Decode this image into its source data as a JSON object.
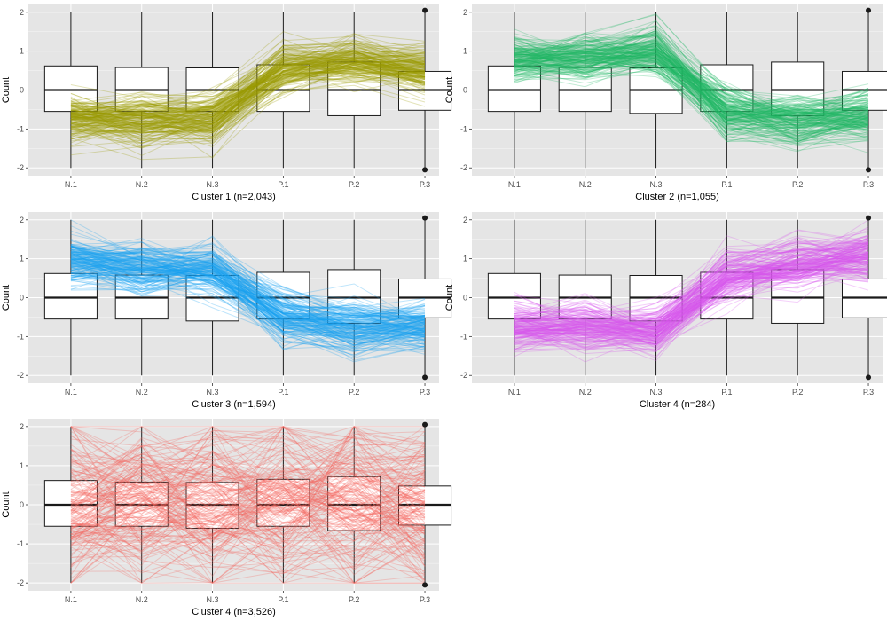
{
  "figure": {
    "panel_background": "#e5e5e5",
    "grid_color": "#ffffff",
    "box_fill": "#ffffff",
    "box_stroke": "#1a1a1a"
  },
  "chart_data": [
    {
      "type": "parallel-coordinates-with-boxplot",
      "title": "",
      "xlabel": "Cluster 1 (n=2,043)",
      "ylabel": "Count",
      "categories": [
        "N.1",
        "N.2",
        "N.3",
        "P.1",
        "P.2",
        "P.3"
      ],
      "yticks": [
        -2,
        -1,
        0,
        1,
        2
      ],
      "ylim": [
        -2.2,
        2.2
      ],
      "line_color": "#999900",
      "n_lines": 2043,
      "profile_mean": [
        -0.75,
        -0.8,
        -0.75,
        0.55,
        0.75,
        0.5
      ],
      "profile_spread": 0.35,
      "boxplots": [
        {
          "q1": -0.55,
          "median": 0.0,
          "q3": 0.62,
          "lower": -2.0,
          "upper": 2.0
        },
        {
          "q1": -0.55,
          "median": 0.0,
          "q3": 0.58,
          "lower": -2.0,
          "upper": 2.0
        },
        {
          "q1": -0.55,
          "median": 0.0,
          "q3": 0.57,
          "lower": -2.0,
          "upper": 2.0
        },
        {
          "q1": -0.55,
          "median": 0.0,
          "q3": 0.65,
          "lower": -2.0,
          "upper": 2.0
        },
        {
          "q1": -0.66,
          "median": 0.0,
          "q3": 0.72,
          "lower": -2.0,
          "upper": 2.0
        },
        {
          "q1": -0.52,
          "median": 0.0,
          "q3": 0.48,
          "lower": -2.0,
          "upper": 2.0,
          "outliers": [
            2.05,
            -2.05
          ]
        }
      ]
    },
    {
      "type": "parallel-coordinates-with-boxplot",
      "title": "",
      "xlabel": "Cluster 2 (n=1,055)",
      "ylabel": "Count",
      "categories": [
        "N.1",
        "N.2",
        "N.3",
        "P.1",
        "P.2",
        "P.3"
      ],
      "yticks": [
        -2,
        -1,
        0,
        1,
        2
      ],
      "ylim": [
        -2.2,
        2.2
      ],
      "line_color": "#1fb866",
      "n_lines": 1055,
      "profile_mean": [
        0.75,
        0.8,
        1.0,
        -0.6,
        -0.8,
        -0.7
      ],
      "profile_spread": 0.35,
      "boxplots": [
        {
          "q1": -0.55,
          "median": 0.0,
          "q3": 0.62,
          "lower": -2.0,
          "upper": 2.0
        },
        {
          "q1": -0.55,
          "median": 0.0,
          "q3": 0.58,
          "lower": -2.0,
          "upper": 2.0
        },
        {
          "q1": -0.6,
          "median": 0.0,
          "q3": 0.57,
          "lower": -2.0,
          "upper": 2.0
        },
        {
          "q1": -0.55,
          "median": 0.0,
          "q3": 0.65,
          "lower": -2.0,
          "upper": 2.0
        },
        {
          "q1": -0.66,
          "median": 0.0,
          "q3": 0.72,
          "lower": -2.0,
          "upper": 2.0
        },
        {
          "q1": -0.52,
          "median": 0.0,
          "q3": 0.48,
          "lower": -2.0,
          "upper": 2.0,
          "outliers": [
            2.05,
            -2.05
          ]
        }
      ]
    },
    {
      "type": "parallel-coordinates-with-boxplot",
      "title": "",
      "xlabel": "Cluster 3 (n=1,594)",
      "ylabel": "Count",
      "categories": [
        "N.1",
        "N.2",
        "N.3",
        "P.1",
        "P.2",
        "P.3"
      ],
      "yticks": [
        -2,
        -1,
        0,
        1,
        2
      ],
      "ylim": [
        -2.2,
        2.2
      ],
      "line_color": "#1aa3f0",
      "n_lines": 1594,
      "profile_mean": [
        0.95,
        0.75,
        0.7,
        -0.5,
        -0.8,
        -0.75
      ],
      "profile_spread": 0.35,
      "boxplots": [
        {
          "q1": -0.55,
          "median": 0.0,
          "q3": 0.62,
          "lower": -2.0,
          "upper": 2.0
        },
        {
          "q1": -0.55,
          "median": 0.0,
          "q3": 0.58,
          "lower": -2.0,
          "upper": 2.0
        },
        {
          "q1": -0.6,
          "median": 0.0,
          "q3": 0.57,
          "lower": -2.0,
          "upper": 2.0
        },
        {
          "q1": -0.55,
          "median": 0.0,
          "q3": 0.65,
          "lower": -2.0,
          "upper": 2.0
        },
        {
          "q1": -0.66,
          "median": 0.0,
          "q3": 0.72,
          "lower": -2.0,
          "upper": 2.0
        },
        {
          "q1": -0.52,
          "median": 0.0,
          "q3": 0.48,
          "lower": -2.0,
          "upper": 2.0,
          "outliers": [
            2.05,
            -2.05
          ]
        }
      ]
    },
    {
      "type": "parallel-coordinates-with-boxplot",
      "title": "",
      "xlabel": "Cluster 4 (n=284)",
      "ylabel": "Count",
      "categories": [
        "N.1",
        "N.2",
        "N.3",
        "P.1",
        "P.2",
        "P.3"
      ],
      "yticks": [
        -2,
        -1,
        0,
        1,
        2
      ],
      "ylim": [
        -2.2,
        2.2
      ],
      "line_color": "#d957ee",
      "n_lines": 284,
      "profile_mean": [
        -0.7,
        -0.75,
        -0.85,
        0.55,
        0.85,
        1.1
      ],
      "profile_spread": 0.35,
      "boxplots": [
        {
          "q1": -0.55,
          "median": 0.0,
          "q3": 0.62,
          "lower": -2.0,
          "upper": 2.0
        },
        {
          "q1": -0.55,
          "median": 0.0,
          "q3": 0.58,
          "lower": -2.0,
          "upper": 2.0
        },
        {
          "q1": -0.6,
          "median": 0.0,
          "q3": 0.57,
          "lower": -2.0,
          "upper": 2.0
        },
        {
          "q1": -0.55,
          "median": 0.0,
          "q3": 0.65,
          "lower": -2.0,
          "upper": 2.0
        },
        {
          "q1": -0.66,
          "median": 0.0,
          "q3": 0.72,
          "lower": -2.0,
          "upper": 2.0
        },
        {
          "q1": -0.52,
          "median": 0.0,
          "q3": 0.48,
          "lower": -2.0,
          "upper": 2.0,
          "outliers": [
            2.05,
            -2.05
          ]
        }
      ]
    },
    {
      "type": "parallel-coordinates-with-boxplot",
      "title": "",
      "xlabel": "Cluster 4 (n=3,526)",
      "ylabel": "Count",
      "categories": [
        "N.1",
        "N.2",
        "N.3",
        "P.1",
        "P.2",
        "P.3"
      ],
      "yticks": [
        -2,
        -1,
        0,
        1,
        2
      ],
      "ylim": [
        -2.2,
        2.2
      ],
      "line_color": "#f4645d",
      "n_lines": 3526,
      "profile_mean": [
        0.0,
        0.0,
        0.0,
        0.0,
        0.0,
        0.0
      ],
      "profile_spread": 1.1,
      "boxplots": [
        {
          "q1": -0.55,
          "median": 0.0,
          "q3": 0.62,
          "lower": -2.0,
          "upper": 2.0
        },
        {
          "q1": -0.55,
          "median": 0.0,
          "q3": 0.58,
          "lower": -2.0,
          "upper": 2.0
        },
        {
          "q1": -0.6,
          "median": 0.0,
          "q3": 0.57,
          "lower": -2.0,
          "upper": 2.0
        },
        {
          "q1": -0.55,
          "median": 0.0,
          "q3": 0.65,
          "lower": -2.0,
          "upper": 2.0
        },
        {
          "q1": -0.66,
          "median": 0.0,
          "q3": 0.72,
          "lower": -2.0,
          "upper": 2.0
        },
        {
          "q1": -0.52,
          "median": 0.0,
          "q3": 0.48,
          "lower": -2.0,
          "upper": 2.0,
          "outliers": [
            2.05,
            -2.05
          ]
        }
      ]
    }
  ]
}
